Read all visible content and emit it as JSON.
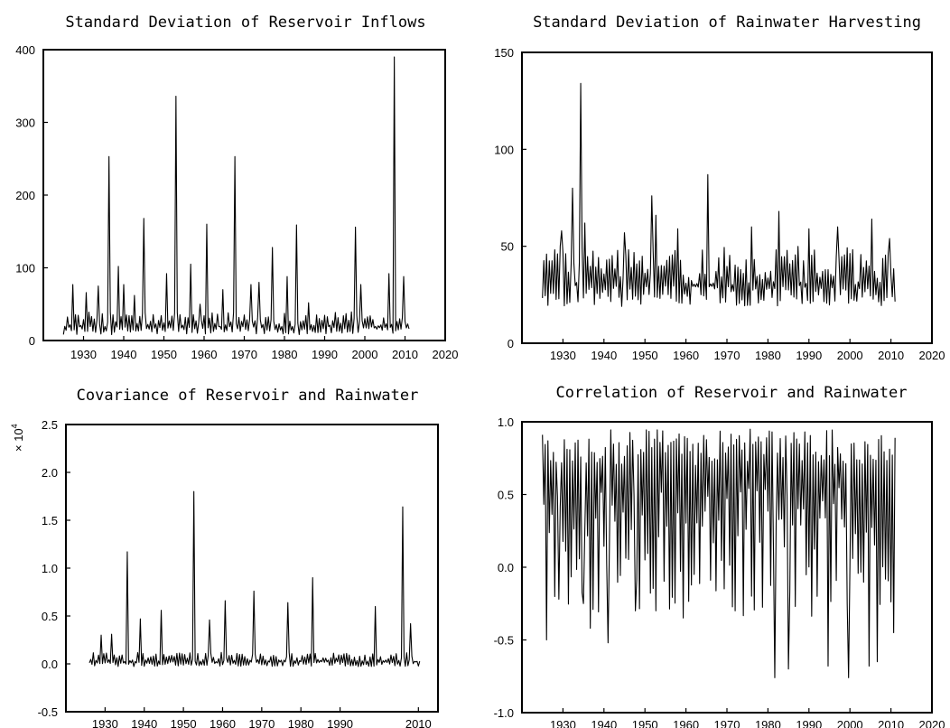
{
  "chart_data": [
    {
      "type": "line",
      "title": "Standard Deviation of Reservoir Inflows",
      "xlabel": "",
      "ylabel": "",
      "xlim": [
        1920,
        2020
      ],
      "ylim": [
        0,
        400
      ],
      "x_ticks": [
        1930,
        1940,
        1950,
        1960,
        1970,
        1980,
        1990,
        2000,
        2010,
        2020
      ],
      "y_ticks": [
        0,
        100,
        200,
        300,
        400
      ],
      "y_tick_labels": [
        "0",
        "100",
        "200",
        "300",
        "400"
      ],
      "grid": false,
      "base": {
        "x0": 1925,
        "x1": 2011,
        "lo": 8,
        "hi": 40
      },
      "peaks": [
        {
          "x": 1927.3,
          "y": 77
        },
        {
          "x": 1930.5,
          "y": 66
        },
        {
          "x": 1933.8,
          "y": 75
        },
        {
          "x": 1936.2,
          "y": 253
        },
        {
          "x": 1938.8,
          "y": 102
        },
        {
          "x": 1940.0,
          "y": 77
        },
        {
          "x": 1942.5,
          "y": 62
        },
        {
          "x": 1945.0,
          "y": 168
        },
        {
          "x": 1950.8,
          "y": 92
        },
        {
          "x": 1953.0,
          "y": 336
        },
        {
          "x": 1956.5,
          "y": 105
        },
        {
          "x": 1959.0,
          "y": 50
        },
        {
          "x": 1960.8,
          "y": 160
        },
        {
          "x": 1964.5,
          "y": 70
        },
        {
          "x": 1967.7,
          "y": 253
        },
        {
          "x": 1971.5,
          "y": 77
        },
        {
          "x": 1973.5,
          "y": 80
        },
        {
          "x": 1977.0,
          "y": 128
        },
        {
          "x": 1980.5,
          "y": 88
        },
        {
          "x": 1983.0,
          "y": 159
        },
        {
          "x": 1986.0,
          "y": 52
        },
        {
          "x": 1997.7,
          "y": 156
        },
        {
          "x": 1999.0,
          "y": 77
        },
        {
          "x": 2006.0,
          "y": 92
        },
        {
          "x": 2007.2,
          "y": 390
        },
        {
          "x": 2009.5,
          "y": 88
        }
      ]
    },
    {
      "type": "line",
      "title": "Standard Deviation of Rainwater Harvesting",
      "xlabel": "",
      "ylabel": "",
      "xlim": [
        1920,
        2020
      ],
      "ylim": [
        0,
        150
      ],
      "x_ticks": [
        1930,
        1940,
        1950,
        1960,
        1970,
        1980,
        1990,
        2000,
        2010,
        2020
      ],
      "y_ticks": [
        0,
        50,
        100,
        150
      ],
      "y_tick_labels": [
        "0",
        "50",
        "100",
        "150"
      ],
      "grid": false,
      "base": {
        "x0": 1925,
        "x1": 2011,
        "lo": 19,
        "hi": 50
      },
      "peaks": [
        {
          "x": 1929.5,
          "y": 58
        },
        {
          "x": 1932.3,
          "y": 80
        },
        {
          "x": 1934.3,
          "y": 134
        },
        {
          "x": 1935.2,
          "y": 62
        },
        {
          "x": 1945.0,
          "y": 57
        },
        {
          "x": 1951.5,
          "y": 76
        },
        {
          "x": 1952.5,
          "y": 66
        },
        {
          "x": 1958.0,
          "y": 59
        },
        {
          "x": 1965.3,
          "y": 87
        },
        {
          "x": 1976.0,
          "y": 60
        },
        {
          "x": 1982.5,
          "y": 68
        },
        {
          "x": 1990.0,
          "y": 59
        },
        {
          "x": 1997.0,
          "y": 60
        },
        {
          "x": 2005.3,
          "y": 64
        },
        {
          "x": 2009.5,
          "y": 54
        }
      ]
    },
    {
      "type": "line",
      "title": "Covariance of Reservoir and Rainwater",
      "xlabel": "",
      "ylabel": "",
      "y_scale_label": "× 10",
      "y_scale_exponent": "4",
      "xlim": [
        1920,
        2015
      ],
      "ylim": [
        -0.5,
        2.5
      ],
      "x_ticks": [
        1930,
        1940,
        1950,
        1960,
        1970,
        1980,
        1990,
        2010
      ],
      "y_ticks": [
        -0.5,
        0,
        0.5,
        1,
        1.5,
        2,
        2.5
      ],
      "y_tick_labels": [
        "-0.5",
        "0.0",
        "0.5",
        "1.0",
        "1.5",
        "2.0",
        "2.5"
      ],
      "grid": false,
      "base": {
        "x0": 1926,
        "x1": 2010.5,
        "lo": -0.03,
        "hi": 0.12
      },
      "peaks": [
        {
          "x": 1929.0,
          "y": 0.3
        },
        {
          "x": 1931.5,
          "y": 0.31
        },
        {
          "x": 1935.5,
          "y": 1.17
        },
        {
          "x": 1939.0,
          "y": 0.47
        },
        {
          "x": 1944.3,
          "y": 0.56
        },
        {
          "x": 1952.5,
          "y": 1.8
        },
        {
          "x": 1956.5,
          "y": 0.46
        },
        {
          "x": 1960.5,
          "y": 0.66
        },
        {
          "x": 1968.0,
          "y": 0.76
        },
        {
          "x": 1976.5,
          "y": 0.64
        },
        {
          "x": 1983.0,
          "y": 0.9
        },
        {
          "x": 1999.0,
          "y": 0.6
        },
        {
          "x": 2006.0,
          "y": 1.64
        },
        {
          "x": 2008.0,
          "y": 0.42
        }
      ]
    },
    {
      "type": "line",
      "title": "Correlation of Reservoir and Rainwater",
      "xlabel": "",
      "ylabel": "",
      "xlim": [
        1920,
        2020
      ],
      "ylim": [
        -1,
        1
      ],
      "x_ticks": [
        1930,
        1940,
        1950,
        1960,
        1970,
        1980,
        1990,
        2000,
        2010,
        2020
      ],
      "y_ticks": [
        -1,
        -0.5,
        0,
        0.5,
        1
      ],
      "y_tick_labels": [
        "-1.0",
        "-0.5",
        "0.0",
        "0.5",
        "1.0"
      ],
      "grid": false,
      "base": {
        "x0": 1925,
        "x1": 2011,
        "lo": 0.1,
        "hi": 0.95
      },
      "dips": [
        {
          "x": 1926.0,
          "y": -0.5
        },
        {
          "x": 1929.0,
          "y": -0.22
        },
        {
          "x": 1935.0,
          "y": -0.25
        },
        {
          "x": 1936.5,
          "y": -0.42
        },
        {
          "x": 1941.0,
          "y": -0.52
        },
        {
          "x": 1947.5,
          "y": -0.3
        },
        {
          "x": 1952.5,
          "y": -0.3
        },
        {
          "x": 1962.0,
          "y": -0.05
        },
        {
          "x": 1972.0,
          "y": -0.3
        },
        {
          "x": 1981.5,
          "y": -0.76
        },
        {
          "x": 1985.0,
          "y": -0.7
        },
        {
          "x": 1994.5,
          "y": -0.68
        },
        {
          "x": 1999.5,
          "y": -0.76
        },
        {
          "x": 2004.5,
          "y": -0.68
        },
        {
          "x": 2006.5,
          "y": -0.65
        },
        {
          "x": 2010.5,
          "y": -0.45
        }
      ]
    }
  ]
}
